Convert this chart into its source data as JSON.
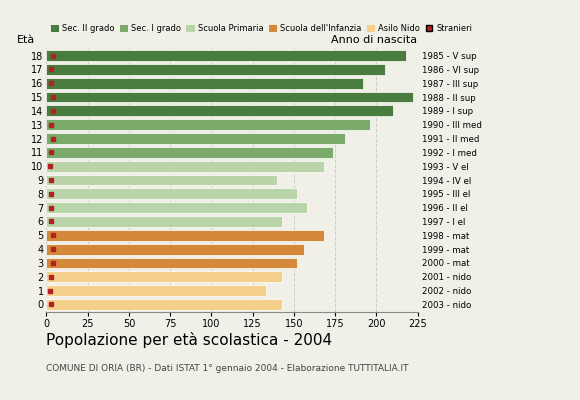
{
  "ages": [
    18,
    17,
    16,
    15,
    14,
    13,
    12,
    11,
    10,
    9,
    8,
    7,
    6,
    5,
    4,
    3,
    2,
    1,
    0
  ],
  "years": [
    "1985 - V sup",
    "1986 - VI sup",
    "1987 - III sup",
    "1988 - II sup",
    "1989 - I sup",
    "1990 - III med",
    "1991 - II med",
    "1992 - I med",
    "1993 - V el",
    "1994 - IV el",
    "1995 - III el",
    "1996 - II el",
    "1997 - I el",
    "1998 - mat",
    "1999 - mat",
    "2000 - mat",
    "2001 - nido",
    "2002 - nido",
    "2003 - nido"
  ],
  "values": [
    218,
    205,
    192,
    222,
    210,
    196,
    181,
    174,
    168,
    140,
    152,
    158,
    143,
    168,
    156,
    152,
    143,
    133,
    143
  ],
  "stranieri": [
    4,
    3,
    3,
    4,
    4,
    3,
    4,
    3,
    2,
    3,
    3,
    3,
    3,
    4,
    4,
    4,
    3,
    2,
    3
  ],
  "age_colors": {
    "14": "#4a7c3f",
    "15": "#4a7c3f",
    "16": "#4a7c3f",
    "17": "#4a7c3f",
    "18": "#4a7c3f",
    "11": "#7aab6b",
    "12": "#7aab6b",
    "13": "#7aab6b",
    "6": "#b8d4a8",
    "7": "#b8d4a8",
    "8": "#b8d4a8",
    "9": "#b8d4a8",
    "10": "#b8d4a8",
    "3": "#d4893a",
    "4": "#d4893a",
    "5": "#d4893a",
    "0": "#f5d08c",
    "1": "#f5d08c",
    "2": "#f5d08c"
  },
  "title": "Popolazione per età scolastica - 2004",
  "subtitle": "COMUNE DI ORIA (BR) - Dati ISTAT 1° gennaio 2004 - Elaborazione TUTTITALIA.IT",
  "eta_label": "Età",
  "anno_label": "Anno di nascita",
  "xlim": [
    0,
    225
  ],
  "xticks": [
    0,
    25,
    50,
    75,
    100,
    125,
    150,
    175,
    200,
    225
  ],
  "legend_labels": [
    "Sec. II grado",
    "Sec. I grado",
    "Scuola Primaria",
    "Scuola dell'Infanzia",
    "Asilo Nido",
    "Stranieri"
  ],
  "legend_colors": [
    "#4a7c3f",
    "#7aab6b",
    "#b8d4a8",
    "#d4893a",
    "#f5d08c",
    "#b22222"
  ],
  "bg_color": "#f0f0e8",
  "bar_height": 0.78,
  "stranieri_color": "#b22222",
  "grid_color": "#cccccc"
}
